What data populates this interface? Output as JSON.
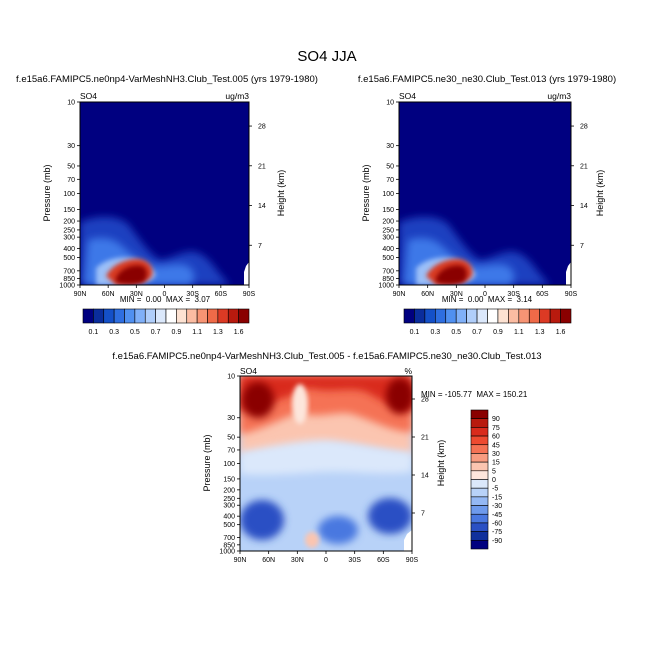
{
  "figure": {
    "title": "SO4 JJA"
  },
  "chart_data": [
    {
      "type": "heatmap",
      "title": "f.e15a6.FAMIPC5.ne0np4-VarMeshNH3.Club_Test.005 (yrs 1979-1980)",
      "left_label": "SO4",
      "right_label": "ug/m3",
      "xlabel": "",
      "ylabel": "Pressure (mb)",
      "y2label": "Height (km)",
      "x_ticks": [
        "90N",
        "60N",
        "30N",
        "0",
        "30S",
        "60S",
        "90S"
      ],
      "y_ticks": [
        "10",
        "30",
        "50",
        "70",
        "100",
        "150",
        "200",
        "250",
        "300",
        "400",
        "500",
        "700",
        "850",
        "1000"
      ],
      "y2_ticks": [
        "28",
        "21",
        "14",
        "7"
      ],
      "stats": "MIN =  0.00  MAX =  3.07",
      "min": 0.0,
      "max": 3.07
    },
    {
      "type": "heatmap",
      "title": "f.e15a6.FAMIPC5.ne30_ne30.Club_Test.013 (yrs 1979-1980)",
      "left_label": "SO4",
      "right_label": "ug/m3",
      "xlabel": "",
      "ylabel": "Pressure (mb)",
      "y2label": "Height (km)",
      "x_ticks": [
        "90N",
        "60N",
        "30N",
        "0",
        "30S",
        "60S",
        "90S"
      ],
      "y_ticks": [
        "10",
        "30",
        "50",
        "70",
        "100",
        "150",
        "200",
        "250",
        "300",
        "400",
        "500",
        "700",
        "850",
        "1000"
      ],
      "y2_ticks": [
        "28",
        "21",
        "14",
        "7"
      ],
      "stats": "MIN =  0.00  MAX =  3.14",
      "min": 0.0,
      "max": 3.14
    },
    {
      "type": "heatmap",
      "title": "f.e15a6.FAMIPC5.ne0np4-VarMeshNH3.Club_Test.005 - f.e15a6.FAMIPC5.ne30_ne30.Club_Test.013",
      "left_label": "SO4",
      "right_label": "%",
      "xlabel": "",
      "ylabel": "Pressure (mb)",
      "y2label": "Height (km)",
      "x_ticks": [
        "90N",
        "60N",
        "30N",
        "0",
        "30S",
        "60S",
        "90S"
      ],
      "y_ticks": [
        "10",
        "30",
        "50",
        "70",
        "100",
        "150",
        "200",
        "250",
        "300",
        "400",
        "500",
        "700",
        "850",
        "1000"
      ],
      "y2_ticks": [
        "28",
        "21",
        "14",
        "7"
      ],
      "stats": "MIN = -105.77  MAX = 150.21",
      "min": -105.77,
      "max": 150.21
    }
  ],
  "colorbar_abs": {
    "labels": [
      "0.1",
      "0.3",
      "0.5",
      "0.7",
      "0.9",
      "1.1",
      "1.3",
      "1.6"
    ],
    "colors": [
      "#000080",
      "#0a2d9c",
      "#1450c8",
      "#2e6ee0",
      "#5090f0",
      "#80b0f8",
      "#b0cefa",
      "#dbe8fb",
      "#ffffff",
      "#fde2d2",
      "#fbbca2",
      "#f79474",
      "#ef6a48",
      "#dc3a24",
      "#b81a0e",
      "#8a0000"
    ]
  },
  "colorbar_diff": {
    "labels": [
      "90",
      "75",
      "60",
      "45",
      "30",
      "15",
      "5",
      "0",
      "-5",
      "-15",
      "-30",
      "-45",
      "-60",
      "-75",
      "-90"
    ],
    "colors": [
      "#8a0000",
      "#b81a0e",
      "#d92b1c",
      "#ee4a30",
      "#f57254",
      "#f89c80",
      "#fbc5b0",
      "#fde6dc",
      "#dbe8fb",
      "#b8d2f8",
      "#94b8f4",
      "#6e9aec",
      "#4a78e0",
      "#2a50c4",
      "#10309c",
      "#000080"
    ]
  }
}
